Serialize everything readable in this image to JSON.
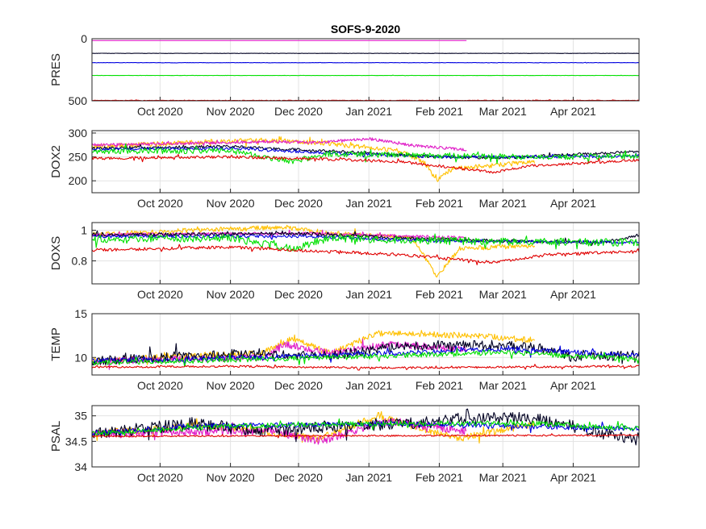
{
  "figure_title": "SOFS-9-2020",
  "series_colors": {
    "surface_yellow": "#FFC000",
    "magenta": "#E020C8",
    "black": "#000022",
    "blue": "#0000E0",
    "green": "#00E000",
    "red": "#E00000"
  },
  "chart_data": [
    {
      "type": "line",
      "ylabel": "PRES",
      "title": "SOFS-9-2020",
      "x_axis": {
        "type": "time",
        "start": "2020-09-01",
        "end": "2021-04-30",
        "tick_labels": [
          "Oct 2020",
          "Nov 2020",
          "Dec 2020",
          "Jan 2021",
          "Feb 2021",
          "Mar 2021",
          "Apr 2021"
        ]
      },
      "ylim": [
        0,
        500
      ],
      "y_reversed": true,
      "yticks": [
        0,
        500
      ],
      "ytick_labels": [
        "0",
        "500"
      ],
      "grid": true,
      "series": [
        {
          "name": "yellow",
          "color": "surface_yellow",
          "mean": 0,
          "noise": 0,
          "end": "2021-03-15"
        },
        {
          "name": "magenta",
          "color": "magenta",
          "mean": 15,
          "noise": 0,
          "end": "2021-02-13"
        },
        {
          "name": "black",
          "color": "black",
          "mean": 118,
          "noise": 1,
          "end": "2021-04-30"
        },
        {
          "name": "blue",
          "color": "blue",
          "mean": 193,
          "noise": 1,
          "end": "2021-04-30"
        },
        {
          "name": "green",
          "color": "green",
          "mean": 296,
          "noise": 1,
          "end": "2021-04-30"
        },
        {
          "name": "red",
          "color": "red",
          "mean": 497,
          "noise": 2,
          "end": "2021-04-30"
        }
      ]
    },
    {
      "type": "line",
      "ylabel": "DOX2",
      "x_axis": {
        "type": "time",
        "start": "2020-09-01",
        "end": "2021-04-30",
        "tick_labels": [
          "Oct 2020",
          "Nov 2020",
          "Dec 2020",
          "Jan 2021",
          "Feb 2021",
          "Mar 2021",
          "Apr 2021"
        ]
      },
      "ylim": [
        175,
        305
      ],
      "yticks": [
        200,
        250,
        300
      ],
      "ytick_labels": [
        "200",
        "250",
        "300"
      ],
      "grid": true,
      "series": [
        {
          "name": "yellow",
          "color": "surface_yellow",
          "end": "2021-03-15",
          "noise": 5,
          "knots": [
            [
              "2020-09-01",
              272
            ],
            [
              "2020-10-15",
              280
            ],
            [
              "2020-11-15",
              285
            ],
            [
              "2020-12-15",
              278
            ],
            [
              "2021-01-15",
              262
            ],
            [
              "2021-01-25",
              240
            ],
            [
              "2021-01-31",
              200
            ],
            [
              "2021-02-07",
              225
            ],
            [
              "2021-02-20",
              230
            ],
            [
              "2021-03-15",
              240
            ]
          ]
        },
        {
          "name": "magenta",
          "color": "magenta",
          "end": "2021-02-13",
          "noise": 3,
          "knots": [
            [
              "2020-09-01",
              275
            ],
            [
              "2020-11-20",
              282
            ],
            [
              "2020-12-10",
              280
            ],
            [
              "2021-01-01",
              288
            ],
            [
              "2021-01-20",
              274
            ],
            [
              "2021-02-13",
              265
            ]
          ]
        },
        {
          "name": "black",
          "color": "black",
          "end": "2021-04-30",
          "noise": 3,
          "knots": [
            [
              "2020-09-01",
              268
            ],
            [
              "2020-11-01",
              272
            ],
            [
              "2020-12-01",
              265
            ],
            [
              "2021-01-01",
              258
            ],
            [
              "2021-02-01",
              250
            ],
            [
              "2021-03-01",
              248
            ],
            [
              "2021-04-01",
              255
            ],
            [
              "2021-04-30",
              262
            ]
          ]
        },
        {
          "name": "blue",
          "color": "blue",
          "end": "2021-04-30",
          "noise": 3,
          "knots": [
            [
              "2020-09-01",
              266
            ],
            [
              "2020-11-01",
              268
            ],
            [
              "2020-12-15",
              258
            ],
            [
              "2021-02-01",
              250
            ],
            [
              "2021-03-15",
              250
            ],
            [
              "2021-04-30",
              252
            ]
          ]
        },
        {
          "name": "green",
          "color": "green",
          "end": "2021-04-30",
          "noise": 6,
          "knots": [
            [
              "2020-09-01",
              262
            ],
            [
              "2020-11-01",
              263
            ],
            [
              "2020-11-28",
              240
            ],
            [
              "2020-12-15",
              257
            ],
            [
              "2021-02-01",
              252
            ],
            [
              "2021-03-15",
              250
            ],
            [
              "2021-04-30",
              252
            ]
          ]
        },
        {
          "name": "red",
          "color": "red",
          "end": "2021-04-30",
          "noise": 3,
          "knots": [
            [
              "2020-09-01",
              247
            ],
            [
              "2020-11-01",
              250
            ],
            [
              "2020-12-15",
              245
            ],
            [
              "2021-01-15",
              240
            ],
            [
              "2021-02-25",
              218
            ],
            [
              "2021-03-15",
              232
            ],
            [
              "2021-04-30",
              243
            ]
          ]
        }
      ]
    },
    {
      "type": "line",
      "ylabel": "DOXS",
      "x_axis": {
        "type": "time",
        "start": "2020-09-01",
        "end": "2021-04-30",
        "tick_labels": [
          "Oct 2020",
          "Nov 2020",
          "Dec 2020",
          "Jan 2021",
          "Feb 2021",
          "Mar 2021",
          "Apr 2021"
        ]
      },
      "ylim": [
        0.65,
        1.05
      ],
      "yticks": [
        0.8,
        1.0
      ],
      "ytick_labels": [
        "0.8",
        "1"
      ],
      "grid": true,
      "series": [
        {
          "name": "yellow",
          "color": "surface_yellow",
          "end": "2021-03-15",
          "noise": 0.015,
          "knots": [
            [
              "2020-09-01",
              0.97
            ],
            [
              "2020-10-15",
              1.0
            ],
            [
              "2020-11-25",
              1.02
            ],
            [
              "2020-12-15",
              0.98
            ],
            [
              "2021-01-20",
              0.95
            ],
            [
              "2021-01-31",
              0.7
            ],
            [
              "2021-02-10",
              0.88
            ],
            [
              "2021-03-15",
              0.9
            ]
          ]
        },
        {
          "name": "magenta",
          "color": "magenta",
          "end": "2021-02-13",
          "noise": 0.01,
          "knots": [
            [
              "2020-09-01",
              0.97
            ],
            [
              "2020-12-01",
              0.98
            ],
            [
              "2021-02-13",
              0.95
            ]
          ]
        },
        {
          "name": "black",
          "color": "black",
          "end": "2021-04-30",
          "noise": 0.01,
          "knots": [
            [
              "2020-09-01",
              0.97
            ],
            [
              "2020-12-01",
              0.98
            ],
            [
              "2021-01-15",
              0.95
            ],
            [
              "2021-03-01",
              0.93
            ],
            [
              "2021-04-15",
              0.92
            ],
            [
              "2021-04-30",
              0.97
            ]
          ]
        },
        {
          "name": "blue",
          "color": "blue",
          "end": "2021-04-30",
          "noise": 0.01,
          "knots": [
            [
              "2020-09-01",
              0.96
            ],
            [
              "2020-12-01",
              0.96
            ],
            [
              "2021-02-01",
              0.93
            ],
            [
              "2021-04-30",
              0.92
            ]
          ]
        },
        {
          "name": "green",
          "color": "green",
          "end": "2021-04-30",
          "noise": 0.025,
          "knots": [
            [
              "2020-09-01",
              0.94
            ],
            [
              "2020-11-01",
              0.95
            ],
            [
              "2020-11-28",
              0.88
            ],
            [
              "2020-12-15",
              0.95
            ],
            [
              "2021-02-01",
              0.93
            ],
            [
              "2021-04-30",
              0.92
            ]
          ]
        },
        {
          "name": "red",
          "color": "red",
          "end": "2021-04-30",
          "noise": 0.01,
          "knots": [
            [
              "2020-09-01",
              0.87
            ],
            [
              "2020-11-01",
              0.89
            ],
            [
              "2020-12-15",
              0.86
            ],
            [
              "2021-01-15",
              0.84
            ],
            [
              "2021-02-25",
              0.79
            ],
            [
              "2021-03-20",
              0.84
            ],
            [
              "2021-04-30",
              0.86
            ]
          ]
        }
      ]
    },
    {
      "type": "line",
      "ylabel": "TEMP",
      "x_axis": {
        "type": "time",
        "start": "2020-09-01",
        "end": "2021-04-30",
        "tick_labels": [
          "Oct 2020",
          "Nov 2020",
          "Dec 2020",
          "Jan 2021",
          "Feb 2021",
          "Mar 2021",
          "Apr 2021"
        ]
      },
      "ylim": [
        8,
        15
      ],
      "yticks": [
        10,
        15
      ],
      "ytick_labels": [
        "10",
        "15"
      ],
      "grid": true,
      "series": [
        {
          "name": "yellow",
          "color": "surface_yellow",
          "end": "2021-03-15",
          "noise": 0.35,
          "knots": [
            [
              "2020-09-01",
              9.6
            ],
            [
              "2020-10-15",
              10.2
            ],
            [
              "2020-11-15",
              10.5
            ],
            [
              "2020-11-28",
              12.2
            ],
            [
              "2020-12-15",
              10.5
            ],
            [
              "2021-01-05",
              12.8
            ],
            [
              "2021-02-15",
              12.5
            ],
            [
              "2021-03-15",
              12.0
            ]
          ]
        },
        {
          "name": "magenta",
          "color": "magenta",
          "end": "2021-02-13",
          "noise": 0.4,
          "knots": [
            [
              "2020-09-01",
              9.6
            ],
            [
              "2020-11-15",
              10.0
            ],
            [
              "2020-11-25",
              11.5
            ],
            [
              "2020-12-15",
              10.5
            ],
            [
              "2021-01-10",
              11.5
            ],
            [
              "2021-02-13",
              11.0
            ]
          ]
        },
        {
          "name": "black",
          "color": "black",
          "end": "2021-04-30",
          "noise": 0.55,
          "knots": [
            [
              "2020-09-01",
              9.6
            ],
            [
              "2020-10-15",
              10.2
            ],
            [
              "2020-11-15",
              10.5
            ],
            [
              "2020-12-15",
              10.2
            ],
            [
              "2021-01-15",
              11.3
            ],
            [
              "2021-02-15",
              11.5
            ],
            [
              "2021-03-15",
              11.2
            ],
            [
              "2021-04-01",
              10.0
            ],
            [
              "2021-04-30",
              10.3
            ]
          ]
        },
        {
          "name": "blue",
          "color": "blue",
          "end": "2021-04-30",
          "noise": 0.3,
          "knots": [
            [
              "2020-09-01",
              9.6
            ],
            [
              "2020-11-15",
              10.0
            ],
            [
              "2021-01-15",
              10.5
            ],
            [
              "2021-03-01",
              11.0
            ],
            [
              "2021-04-30",
              10.2
            ]
          ]
        },
        {
          "name": "green",
          "color": "green",
          "end": "2021-04-30",
          "noise": 0.3,
          "knots": [
            [
              "2020-09-01",
              9.4
            ],
            [
              "2020-11-15",
              9.8
            ],
            [
              "2021-01-15",
              10.2
            ],
            [
              "2021-03-01",
              10.6
            ],
            [
              "2021-04-30",
              9.8
            ]
          ]
        },
        {
          "name": "red",
          "color": "red",
          "end": "2021-04-30",
          "noise": 0.12,
          "knots": [
            [
              "2020-09-01",
              8.9
            ],
            [
              "2020-11-01",
              9.0
            ],
            [
              "2021-01-01",
              8.8
            ],
            [
              "2021-03-01",
              8.9
            ],
            [
              "2021-04-30",
              9.0
            ]
          ]
        }
      ]
    },
    {
      "type": "line",
      "ylabel": "PSAL",
      "x_axis": {
        "type": "time",
        "start": "2020-09-01",
        "end": "2021-04-30",
        "tick_labels": [
          "Oct 2020",
          "Nov 2020",
          "Dec 2020",
          "Jan 2021",
          "Feb 2021",
          "Mar 2021",
          "Apr 2021"
        ]
      },
      "ylim": [
        34,
        35.2
      ],
      "yticks": [
        34,
        34.5,
        35
      ],
      "ytick_labels": [
        "34",
        "34.5",
        "35"
      ],
      "grid": true,
      "series": [
        {
          "name": "yellow",
          "color": "surface_yellow",
          "end": "2021-03-15",
          "noise": 0.07,
          "knots": [
            [
              "2020-09-01",
              34.65
            ],
            [
              "2020-10-15",
              34.8
            ],
            [
              "2020-11-15",
              34.7
            ],
            [
              "2020-12-10",
              34.55
            ],
            [
              "2021-01-05",
              35.0
            ],
            [
              "2021-01-20",
              34.8
            ],
            [
              "2021-02-10",
              34.55
            ],
            [
              "2021-03-15",
              34.85
            ]
          ]
        },
        {
          "name": "magenta",
          "color": "magenta",
          "end": "2021-02-13",
          "noise": 0.08,
          "knots": [
            [
              "2020-09-01",
              34.65
            ],
            [
              "2020-11-20",
              34.7
            ],
            [
              "2020-12-10",
              34.5
            ],
            [
              "2021-01-10",
              34.9
            ],
            [
              "2021-02-13",
              34.7
            ]
          ]
        },
        {
          "name": "black",
          "color": "black",
          "end": "2021-04-30",
          "noise": 0.12,
          "knots": [
            [
              "2020-09-01",
              34.65
            ],
            [
              "2020-10-15",
              34.85
            ],
            [
              "2020-11-15",
              34.7
            ],
            [
              "2020-12-15",
              34.8
            ],
            [
              "2021-01-15",
              34.85
            ],
            [
              "2021-02-15",
              34.95
            ],
            [
              "2021-03-15",
              34.95
            ],
            [
              "2021-04-05",
              34.75
            ],
            [
              "2021-04-30",
              34.5
            ]
          ]
        },
        {
          "name": "blue",
          "color": "blue",
          "end": "2021-04-30",
          "noise": 0.05,
          "knots": [
            [
              "2020-09-01",
              34.65
            ],
            [
              "2020-10-15",
              34.8
            ],
            [
              "2021-01-15",
              34.85
            ],
            [
              "2021-04-30",
              34.75
            ]
          ]
        },
        {
          "name": "green",
          "color": "green",
          "end": "2021-04-30",
          "noise": 0.05,
          "knots": [
            [
              "2020-09-01",
              34.65
            ],
            [
              "2020-11-01",
              34.8
            ],
            [
              "2021-01-15",
              34.85
            ],
            [
              "2021-03-15",
              34.85
            ],
            [
              "2021-04-30",
              34.75
            ]
          ]
        },
        {
          "name": "red",
          "color": "red",
          "end": "2021-04-30",
          "noise": 0.015,
          "knots": [
            [
              "2020-09-01",
              34.6
            ],
            [
              "2021-04-30",
              34.62
            ]
          ]
        }
      ]
    }
  ]
}
